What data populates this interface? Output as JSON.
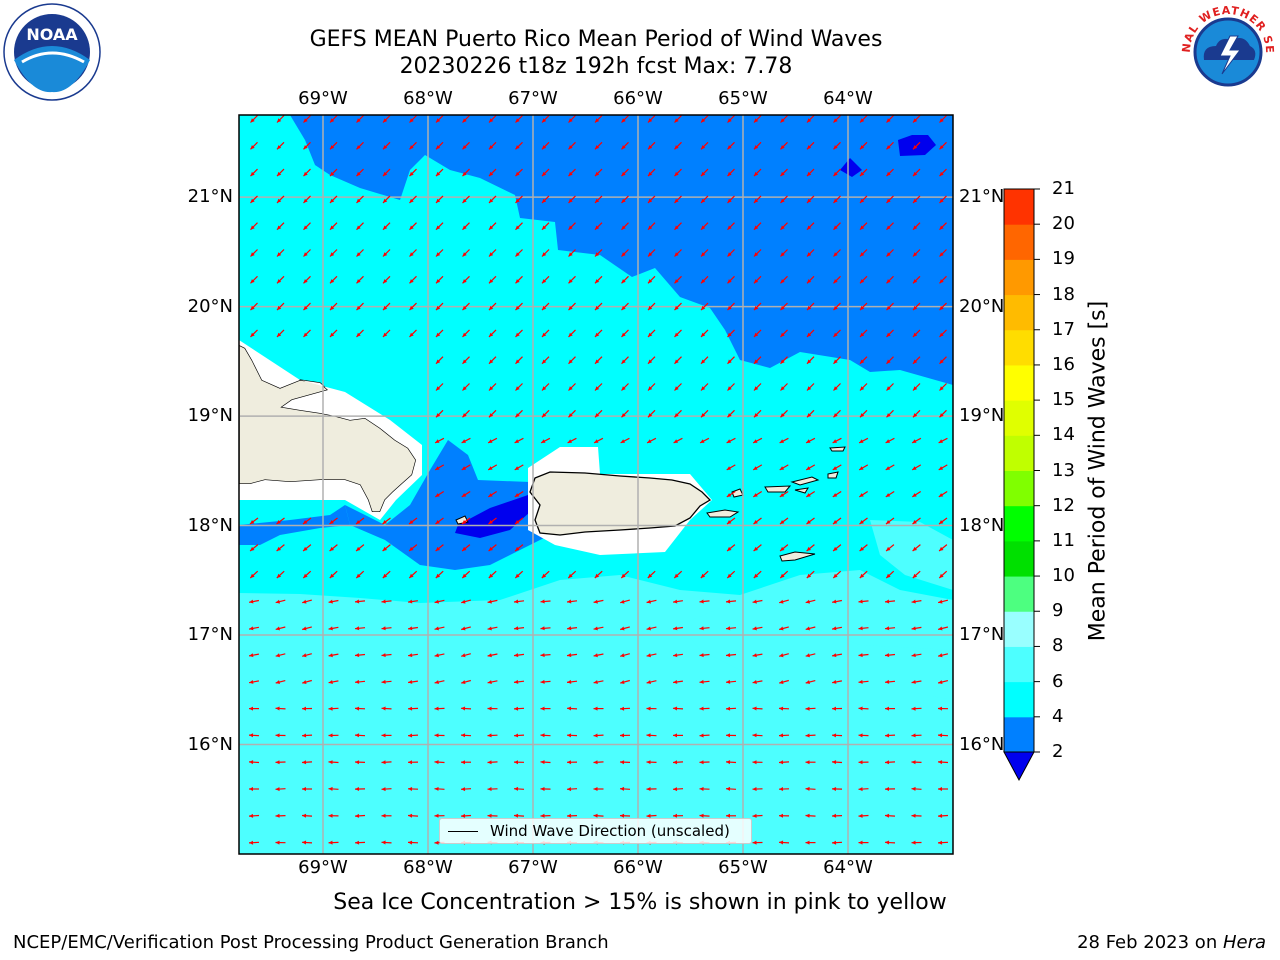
{
  "header": {
    "title_line1": "GEFS MEAN Puerto Rico Mean Period of Wind Waves",
    "title_line2": "20230226 t18z 192h fcst   Max: 7.78"
  },
  "logos": {
    "left": {
      "name": "noaa-logo",
      "text": "NOAA"
    },
    "right": {
      "name": "nws-logo",
      "text": "NATIONAL WEATHER SERVICE"
    }
  },
  "map": {
    "lon_labels": [
      "69°W",
      "68°W",
      "67°W",
      "66°W",
      "65°W",
      "64°W"
    ],
    "lon_values": [
      -69,
      -68,
      -67,
      -66,
      -65,
      -64
    ],
    "lat_labels": [
      "21°N",
      "20°N",
      "19°N",
      "18°N",
      "17°N",
      "16°N"
    ],
    "lat_values": [
      21,
      20,
      19,
      18,
      17,
      16
    ],
    "lon_range": [
      -69.8,
      -63.0
    ],
    "lat_range": [
      15.0,
      21.75
    ],
    "ocean_base_color": "#4dffff",
    "land_color": "#efedde",
    "arrow_color": "#ff0000",
    "grid_color": "#b0b0b0"
  },
  "legend": {
    "label": "Wind Wave Direction (unscaled)"
  },
  "colorbar": {
    "label": "Mean Period of Wind Waves [s]",
    "ticks": [
      "2",
      "4",
      "6",
      "8",
      "9",
      "10",
      "11",
      "12",
      "13",
      "14",
      "15",
      "16",
      "17",
      "18",
      "19",
      "20",
      "21"
    ],
    "colors": [
      "#0080ff",
      "#00ffff",
      "#4dffff",
      "#99ffff",
      "#4dff80",
      "#00e000",
      "#00ff00",
      "#80ff00",
      "#c0ff00",
      "#e0ff00",
      "#ffff00",
      "#ffdd00",
      "#ffbb00",
      "#ff9900",
      "#ff6600",
      "#ff3300",
      "#ff0000"
    ],
    "extend_color": "#0000ee"
  },
  "footer": {
    "ice_note": "Sea Ice Concentration > 15% is shown in pink to yellow",
    "left": "NCEP/EMC/Verification Post Processing Product Generation Branch",
    "right_prefix": "28 Feb 2023 on ",
    "right_host": "Hera"
  }
}
